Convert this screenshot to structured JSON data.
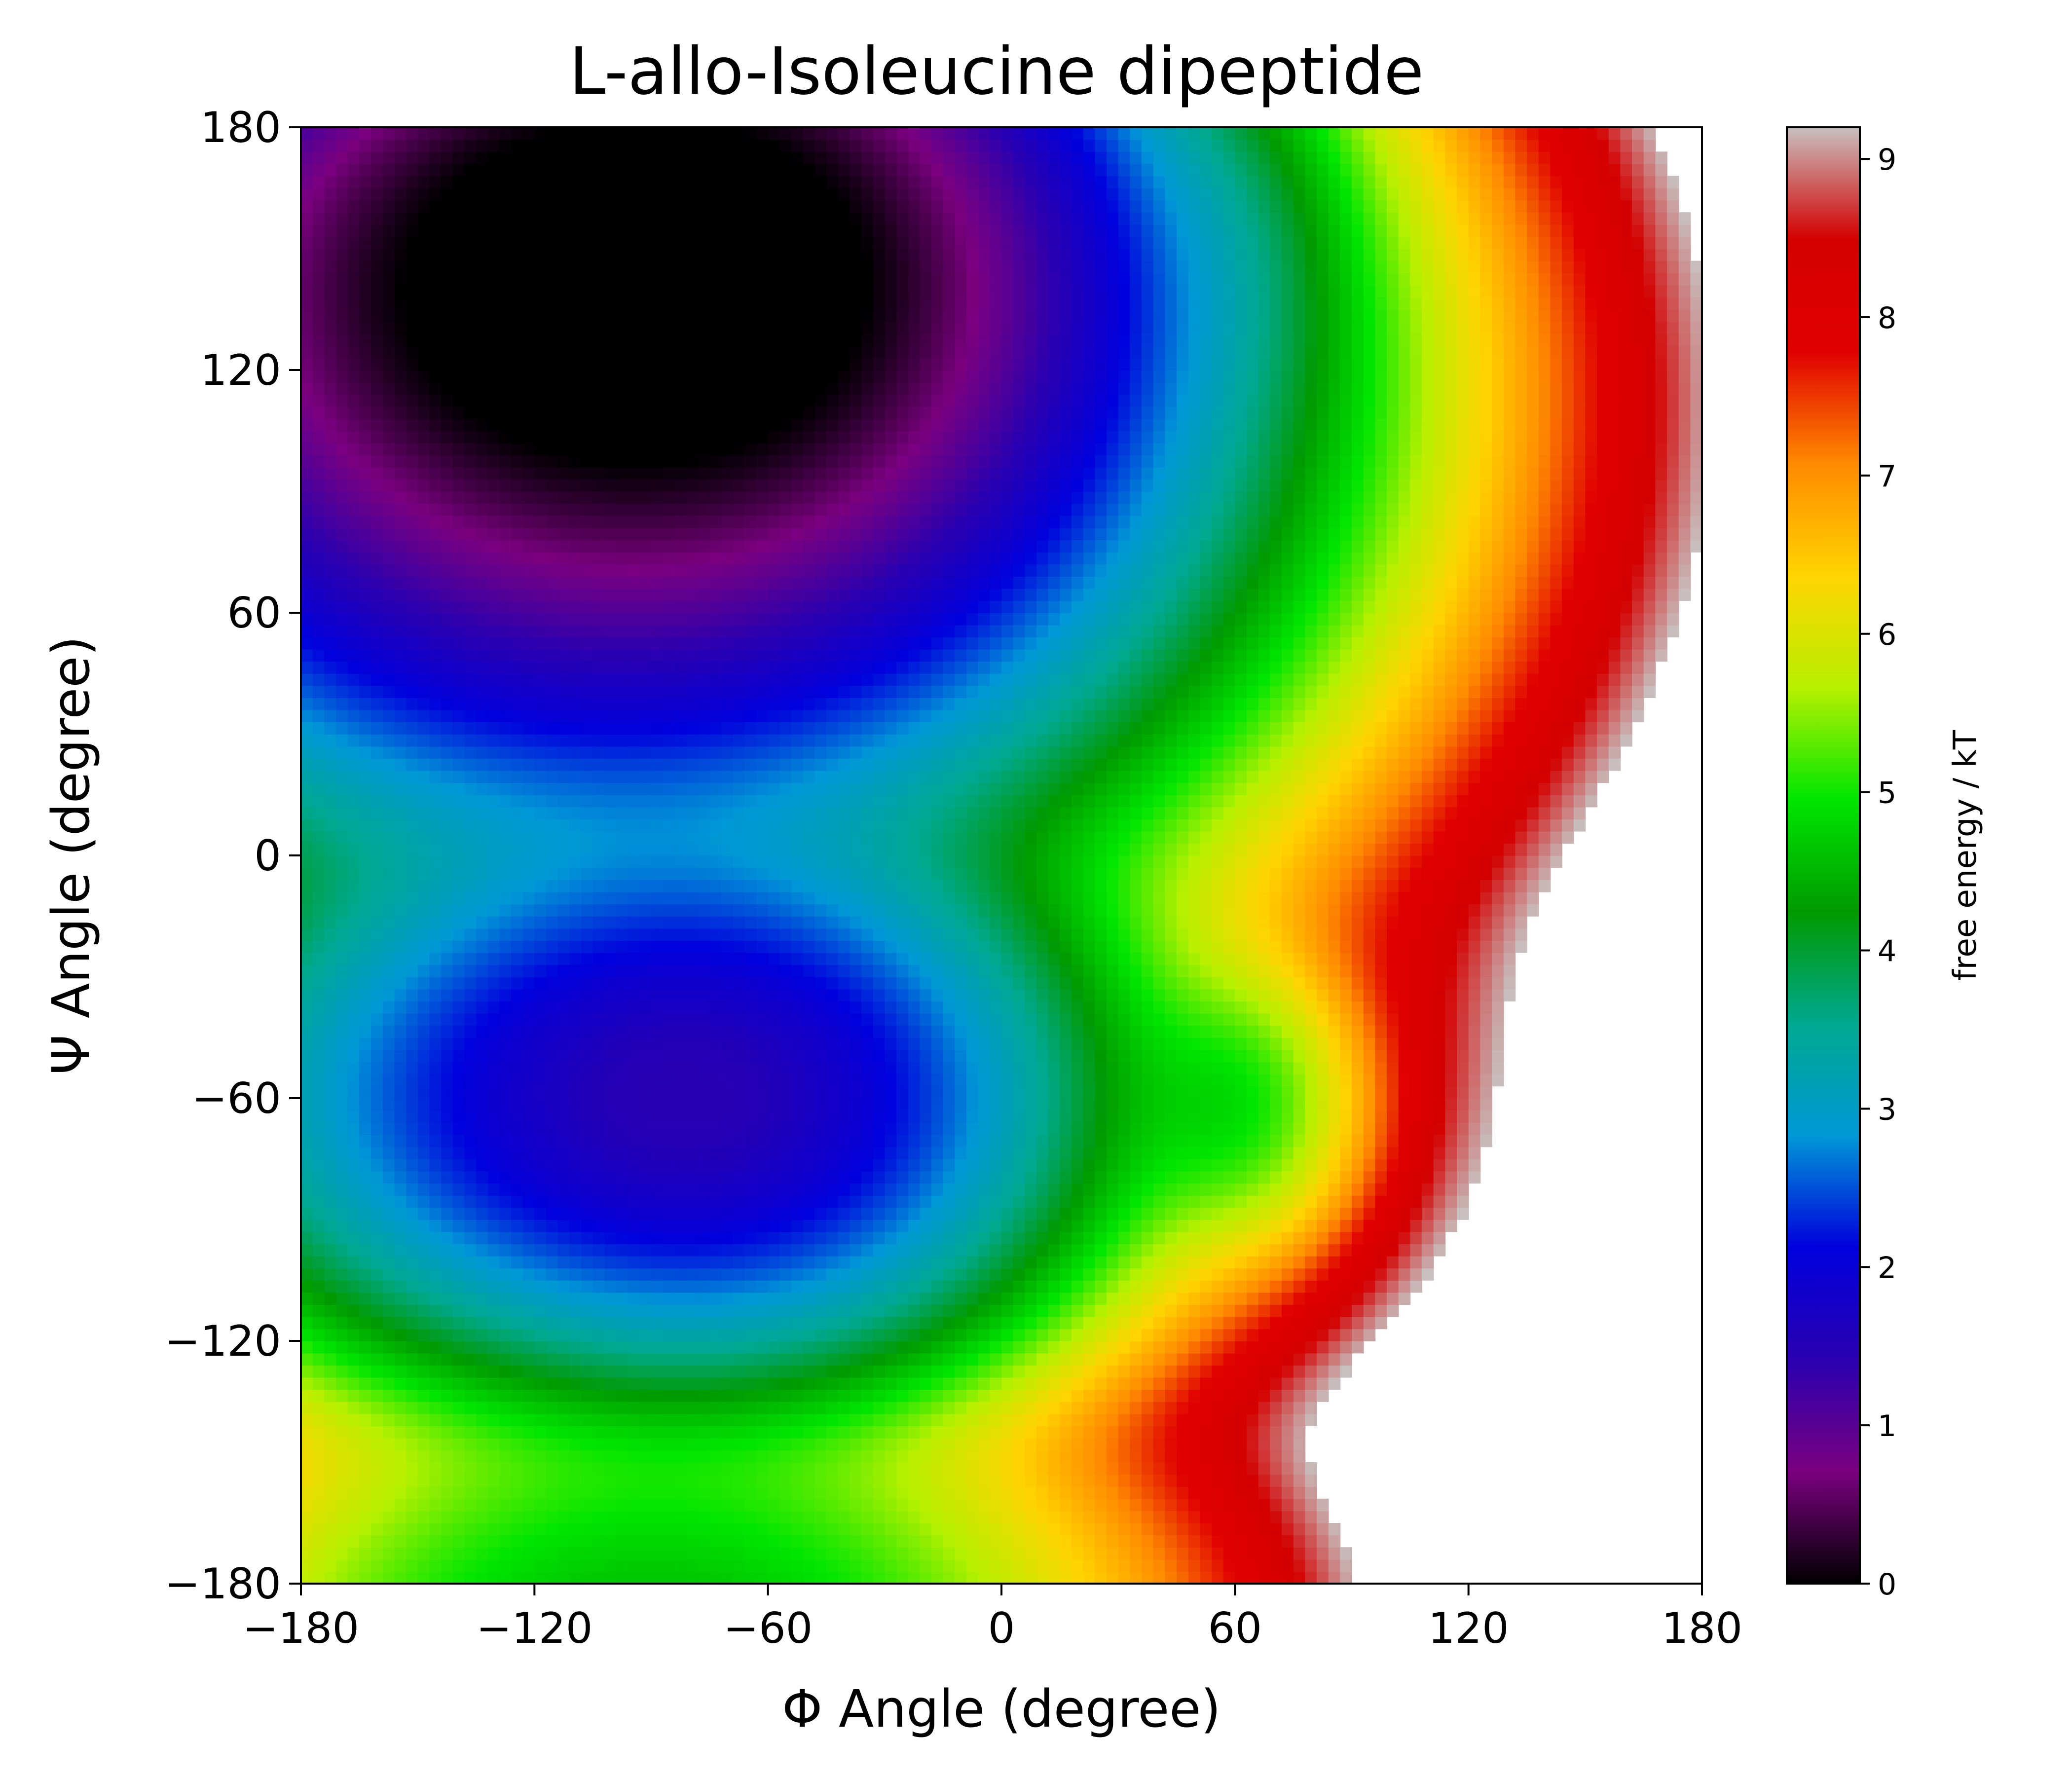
{
  "chart_data": {
    "type": "heatmap",
    "title": "L-allo-Isoleucine dipeptide",
    "xlabel": "Φ Angle (degree)",
    "ylabel": "Ψ Angle (degree)",
    "xlim": [
      -180,
      180
    ],
    "ylim": [
      -180,
      180
    ],
    "xticks": [
      -180,
      -120,
      -60,
      0,
      60,
      120,
      180
    ],
    "yticks": [
      -180,
      -120,
      -60,
      0,
      60,
      120,
      180
    ],
    "xtick_labels": [
      "−180",
      "−120",
      "−60",
      "0",
      "60",
      "120",
      "180"
    ],
    "ytick_labels": [
      "−180",
      "−120",
      "−60",
      "0",
      "60",
      "120",
      "180"
    ],
    "colorbar": {
      "label": "free energy / kT",
      "range": [
        0,
        9.2
      ],
      "ticks": [
        0,
        1,
        2,
        3,
        4,
        5,
        6,
        7,
        8,
        9
      ],
      "tick_labels": [
        "0",
        "1",
        "2",
        "3",
        "4",
        "5",
        "6",
        "7",
        "8",
        "9"
      ],
      "colormap": [
        "#000000",
        "#7a007f",
        "#2a00b0",
        "#0000dd",
        "#0098d6",
        "#00a88f",
        "#009a00",
        "#00e600",
        "#b8f000",
        "#ffd400",
        "#ff8a00",
        "#e00000",
        "#d40000",
        "#c8c0c0"
      ]
    },
    "basins": [
      {
        "phi": -75,
        "psi": 147,
        "min_energy": 0.0
      },
      {
        "phi": -125,
        "psi": 147,
        "min_energy": 0.6
      },
      {
        "phi": -75,
        "psi": -60,
        "min_energy": 1.6
      },
      {
        "phi": -125,
        "psi": -60,
        "min_energy": 3.0
      },
      {
        "phi": -90,
        "psi": -180,
        "min_energy": 4.5
      },
      {
        "phi": 60,
        "psi": 150,
        "min_energy": 5.2
      },
      {
        "phi": 60,
        "psi": -62,
        "min_energy": 5.2
      }
    ],
    "grid": false
  }
}
